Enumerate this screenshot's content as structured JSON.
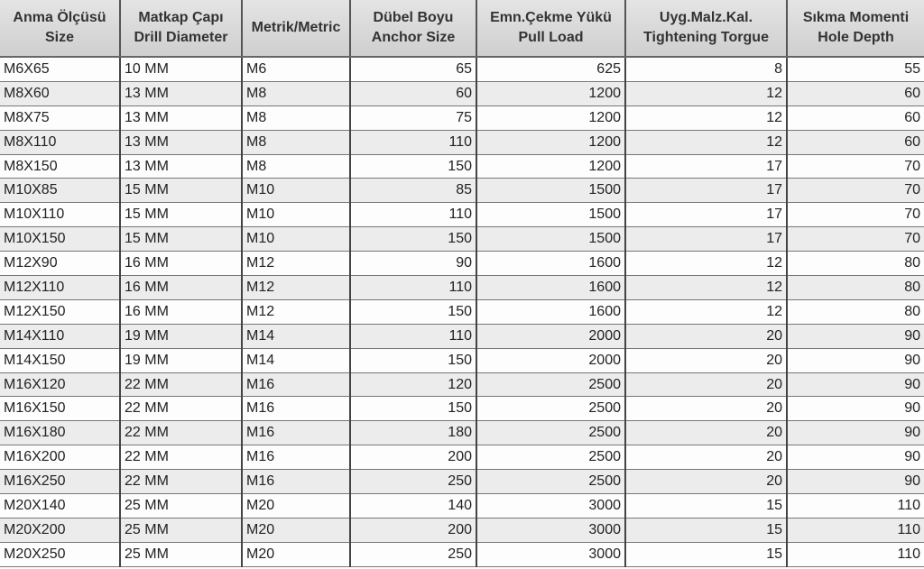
{
  "headers": [
    {
      "line1": "Anma Ölçüsü",
      "line2": "Size"
    },
    {
      "line1": "Matkap Çapı",
      "line2": "Drill Diameter"
    },
    {
      "line1": "Metrik/Metric",
      "line2": ""
    },
    {
      "line1": "Dübel Boyu",
      "line2": "Anchor Size"
    },
    {
      "line1": "Emn.Çekme Yükü",
      "line2": "Pull Load"
    },
    {
      "line1": "Uyg.Malz.Kal.",
      "line2": "Tightening Torgue"
    },
    {
      "line1": "Sıkma Momenti",
      "line2": "Hole Depth"
    }
  ],
  "rows": [
    [
      "M6X65",
      "10 MM",
      "M6",
      "65",
      "625",
      "8",
      "55"
    ],
    [
      "M8X60",
      "13 MM",
      "M8",
      "60",
      "1200",
      "12",
      "60"
    ],
    [
      "M8X75",
      "13 MM",
      "M8",
      "75",
      "1200",
      "12",
      "60"
    ],
    [
      "M8X110",
      "13 MM",
      "M8",
      "110",
      "1200",
      "12",
      "60"
    ],
    [
      "M8X150",
      "13 MM",
      "M8",
      "150",
      "1200",
      "17",
      "70"
    ],
    [
      "M10X85",
      "15 MM",
      "M10",
      "85",
      "1500",
      "17",
      "70"
    ],
    [
      "M10X110",
      "15 MM",
      "M10",
      "110",
      "1500",
      "17",
      "70"
    ],
    [
      "M10X150",
      "15 MM",
      "M10",
      "150",
      "1500",
      "17",
      "70"
    ],
    [
      "M12X90",
      "16 MM",
      "M12",
      "90",
      "1600",
      "12",
      "80"
    ],
    [
      "M12X110",
      "16 MM",
      "M12",
      "110",
      "1600",
      "12",
      "80"
    ],
    [
      "M12X150",
      "16 MM",
      "M12",
      "150",
      "1600",
      "12",
      "80"
    ],
    [
      "M14X110",
      "19 MM",
      "M14",
      "110",
      "2000",
      "20",
      "90"
    ],
    [
      "M14X150",
      "19 MM",
      "M14",
      "150",
      "2000",
      "20",
      "90"
    ],
    [
      "M16X120",
      "22 MM",
      "M16",
      "120",
      "2500",
      "20",
      "90"
    ],
    [
      "M16X150",
      "22 MM",
      "M16",
      "150",
      "2500",
      "20",
      "90"
    ],
    [
      "M16X180",
      "22 MM",
      "M16",
      "180",
      "2500",
      "20",
      "90"
    ],
    [
      "M16X200",
      "22 MM",
      "M16",
      "200",
      "2500",
      "20",
      "90"
    ],
    [
      "M16X250",
      "22 MM",
      "M16",
      "250",
      "2500",
      "20",
      "90"
    ],
    [
      "M20X140",
      "25 MM",
      "M20",
      "140",
      "3000",
      "15",
      "110"
    ],
    [
      "M20X200",
      "25 MM",
      "M20",
      "200",
      "3000",
      "15",
      "110"
    ],
    [
      "M20X250",
      "25 MM",
      "M20",
      "250",
      "3000",
      "15",
      "110"
    ]
  ]
}
